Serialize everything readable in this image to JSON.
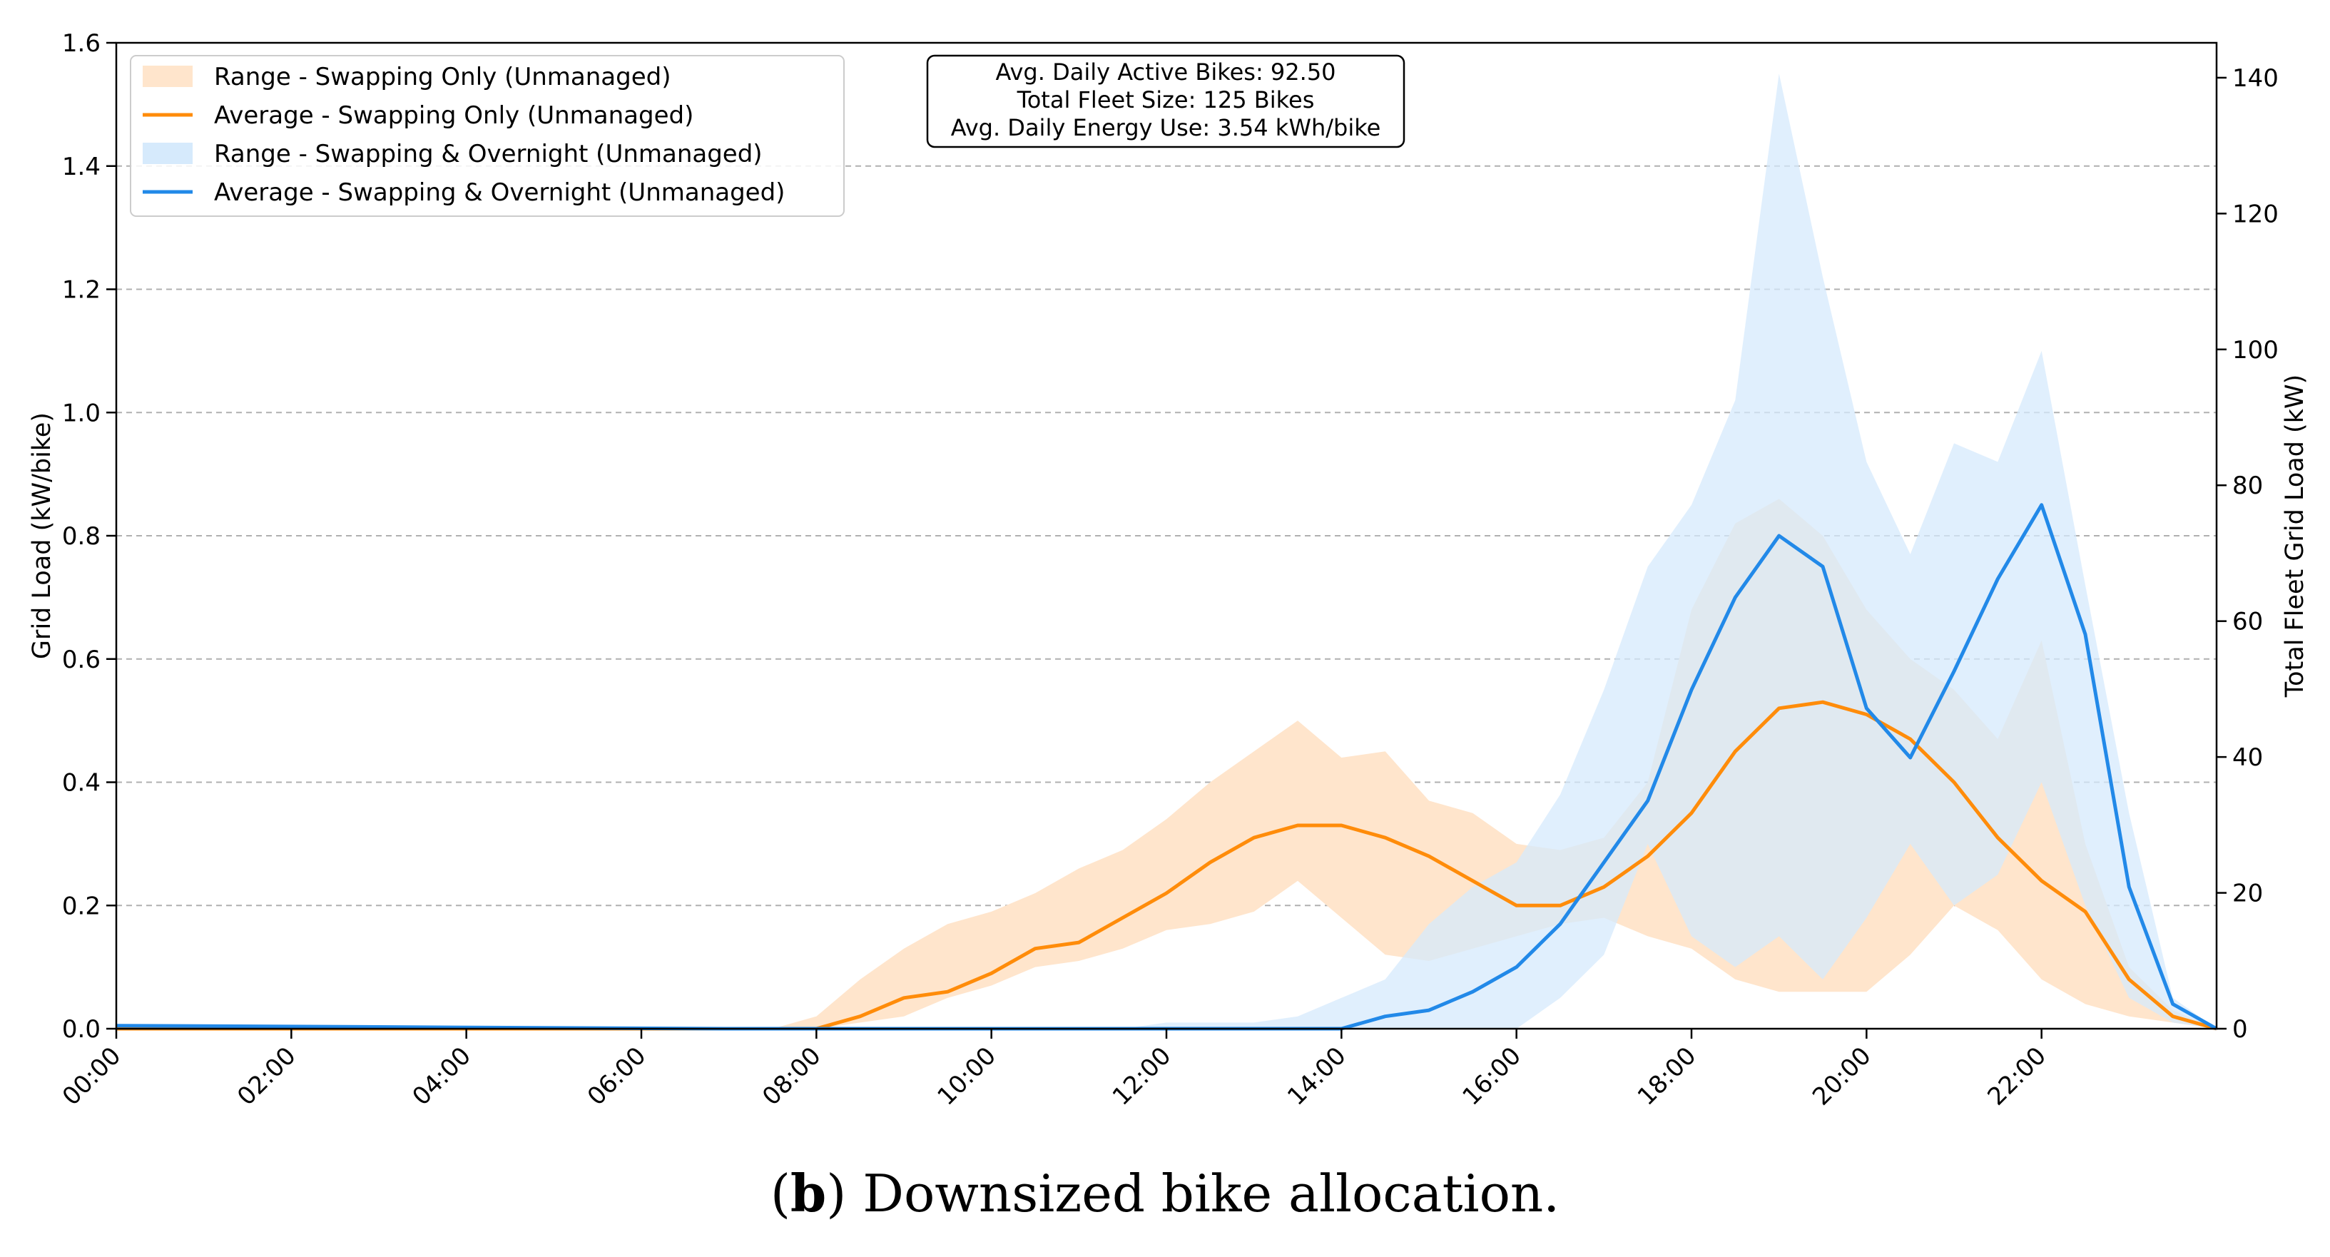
{
  "chart_data": {
    "type": "area",
    "x_ticks": [
      "00:00",
      "02:00",
      "04:00",
      "06:00",
      "08:00",
      "10:00",
      "12:00",
      "14:00",
      "16:00",
      "18:00",
      "20:00",
      "22:00"
    ],
    "xlim": [
      "00:00",
      "24:00"
    ],
    "ylabel": "Grid Load (kW/bike)",
    "ylim": [
      0,
      1.6
    ],
    "y_ticks": [
      "0.0",
      "0.2",
      "0.4",
      "0.6",
      "0.8",
      "1.0",
      "1.2",
      "1.4",
      "1.6"
    ],
    "y2label": "Total Fleet Grid Load (kW)",
    "y2_ticks": [
      "0",
      "20",
      "40",
      "60",
      "80",
      "100",
      "120",
      "140"
    ],
    "grid": "horizontal dashed",
    "legend_position": "top-left",
    "annotation": [
      "Avg. Daily Active Bikes: 92.50",
      "Total Fleet Size: 125 Bikes",
      "Avg. Daily Energy Use: 3.54 kWh/bike"
    ],
    "caption": {
      "prefix": "(",
      "bold": "b",
      "text": ") Downsized bike allocation."
    },
    "x": [
      "00:00",
      "07:00",
      "07:30",
      "08:00",
      "08:30",
      "09:00",
      "09:30",
      "10:00",
      "10:30",
      "11:00",
      "11:30",
      "12:00",
      "12:30",
      "13:00",
      "13:30",
      "14:00",
      "14:30",
      "15:00",
      "15:30",
      "16:00",
      "16:30",
      "17:00",
      "17:30",
      "18:00",
      "18:30",
      "19:00",
      "19:30",
      "20:00",
      "20:30",
      "21:00",
      "21:30",
      "22:00",
      "22:30",
      "23:00",
      "23:30",
      "24:00"
    ],
    "series": [
      {
        "name": "Range - Swapping Only (Unmanaged)",
        "kind": "band",
        "color": "#ffe5cc",
        "lower": [
          0,
          0,
          0,
          0,
          0.01,
          0.02,
          0.05,
          0.07,
          0.1,
          0.11,
          0.13,
          0.16,
          0.17,
          0.19,
          0.24,
          0.18,
          0.12,
          0.11,
          0.13,
          0.15,
          0.17,
          0.18,
          0.15,
          0.13,
          0.08,
          0.06,
          0.06,
          0.06,
          0.12,
          0.2,
          0.16,
          0.08,
          0.04,
          0.02,
          0.01,
          0
        ],
        "upper": [
          0,
          0,
          0,
          0.02,
          0.08,
          0.13,
          0.17,
          0.19,
          0.22,
          0.26,
          0.29,
          0.34,
          0.4,
          0.45,
          0.5,
          0.44,
          0.45,
          0.37,
          0.35,
          0.3,
          0.29,
          0.31,
          0.4,
          0.68,
          0.82,
          0.86,
          0.8,
          0.68,
          0.6,
          0.55,
          0.47,
          0.63,
          0.3,
          0.1,
          0.03,
          0
        ]
      },
      {
        "name": "Average - Swapping Only (Unmanaged)",
        "kind": "line",
        "color": "#ff8c0a",
        "values": [
          0,
          0,
          0,
          0,
          0.02,
          0.05,
          0.06,
          0.09,
          0.13,
          0.14,
          0.18,
          0.22,
          0.27,
          0.31,
          0.33,
          0.33,
          0.31,
          0.28,
          0.24,
          0.2,
          0.2,
          0.23,
          0.28,
          0.35,
          0.45,
          0.52,
          0.53,
          0.51,
          0.47,
          0.4,
          0.31,
          0.24,
          0.19,
          0.08,
          0.02,
          0
        ]
      },
      {
        "name": "Range - Swapping & Overnight (Unmanaged)",
        "kind": "band",
        "color": "#d6eafc",
        "lower": [
          0,
          0,
          0,
          0,
          0,
          0,
          0,
          0,
          0,
          0,
          0,
          0,
          0,
          0,
          0,
          0,
          0,
          0,
          0,
          0,
          0.05,
          0.12,
          0.3,
          0.15,
          0.1,
          0.15,
          0.08,
          0.18,
          0.3,
          0.2,
          0.25,
          0.4,
          0.2,
          0.05,
          0.01,
          0
        ],
        "upper": [
          0,
          0,
          0,
          0,
          0,
          0,
          0,
          0,
          0,
          0,
          0,
          0.01,
          0.01,
          0.01,
          0.02,
          0.05,
          0.08,
          0.17,
          0.23,
          0.27,
          0.38,
          0.55,
          0.75,
          0.85,
          1.02,
          1.55,
          1.22,
          0.92,
          0.77,
          0.95,
          0.92,
          1.1,
          0.72,
          0.35,
          0.05,
          0
        ]
      },
      {
        "name": "Average - Swapping & Overnight (Unmanaged)",
        "kind": "line",
        "color": "#2289e8",
        "values": [
          0.005,
          0,
          0,
          0,
          0,
          0,
          0,
          0,
          0,
          0,
          0,
          0,
          0,
          0,
          0,
          0,
          0.02,
          0.03,
          0.06,
          0.1,
          0.17,
          0.27,
          0.37,
          0.55,
          0.7,
          0.8,
          0.75,
          0.52,
          0.44,
          0.58,
          0.73,
          0.85,
          0.64,
          0.23,
          0.04,
          0
        ]
      }
    ]
  }
}
